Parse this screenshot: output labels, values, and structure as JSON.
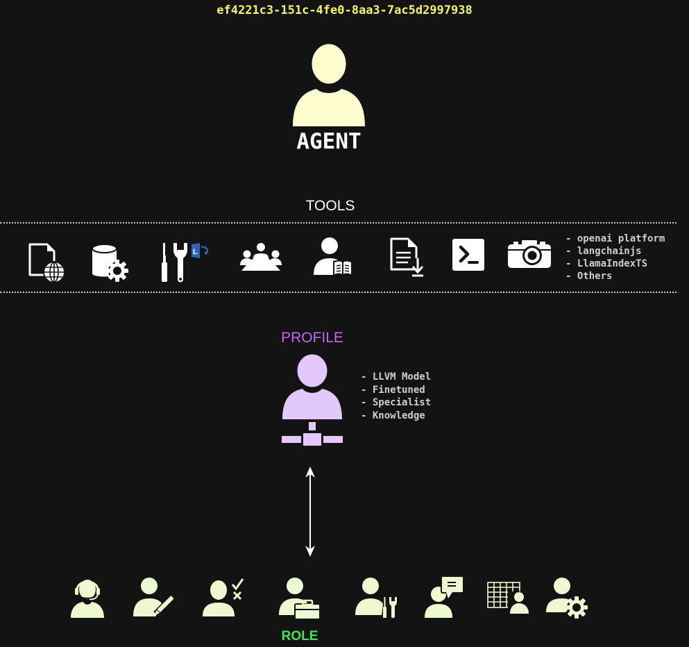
{
  "header": {
    "id_text": "ef4221c3-151c-4fe0-8aa3-7ac5d2997938"
  },
  "agent": {
    "label": "AGENT"
  },
  "tools": {
    "label": "TOOLS",
    "icons": [
      "web-document-icon",
      "database-settings-icon",
      "sharepoint-tools-icon",
      "team-meeting-icon",
      "user-reading-icon",
      "document-download-icon",
      "terminal-icon",
      "camera-icon"
    ],
    "platforms": [
      "- openai platform",
      "- langchainjs",
      "- LlamaIndexTS",
      "- Others"
    ]
  },
  "profile": {
    "label": "PROFILE",
    "items": [
      "- LLVM Model",
      "- Finetuned",
      "- Specialist",
      "- Knowledge"
    ]
  },
  "role": {
    "label": "ROLE",
    "icons": [
      "support-agent-icon",
      "user-edit-icon",
      "user-approve-reject-icon",
      "user-briefcase-icon",
      "user-tools-icon",
      "user-chat-icon",
      "user-spreadsheet-icon",
      "user-settings-icon"
    ]
  },
  "colors": {
    "background": "#131313",
    "agent": "#fdfdcf",
    "profile": "#e2c8fb",
    "profile_label": "#c06cf0",
    "role": "#eef9d2",
    "role_label": "#44e455",
    "id_text": "#f5f56a"
  }
}
